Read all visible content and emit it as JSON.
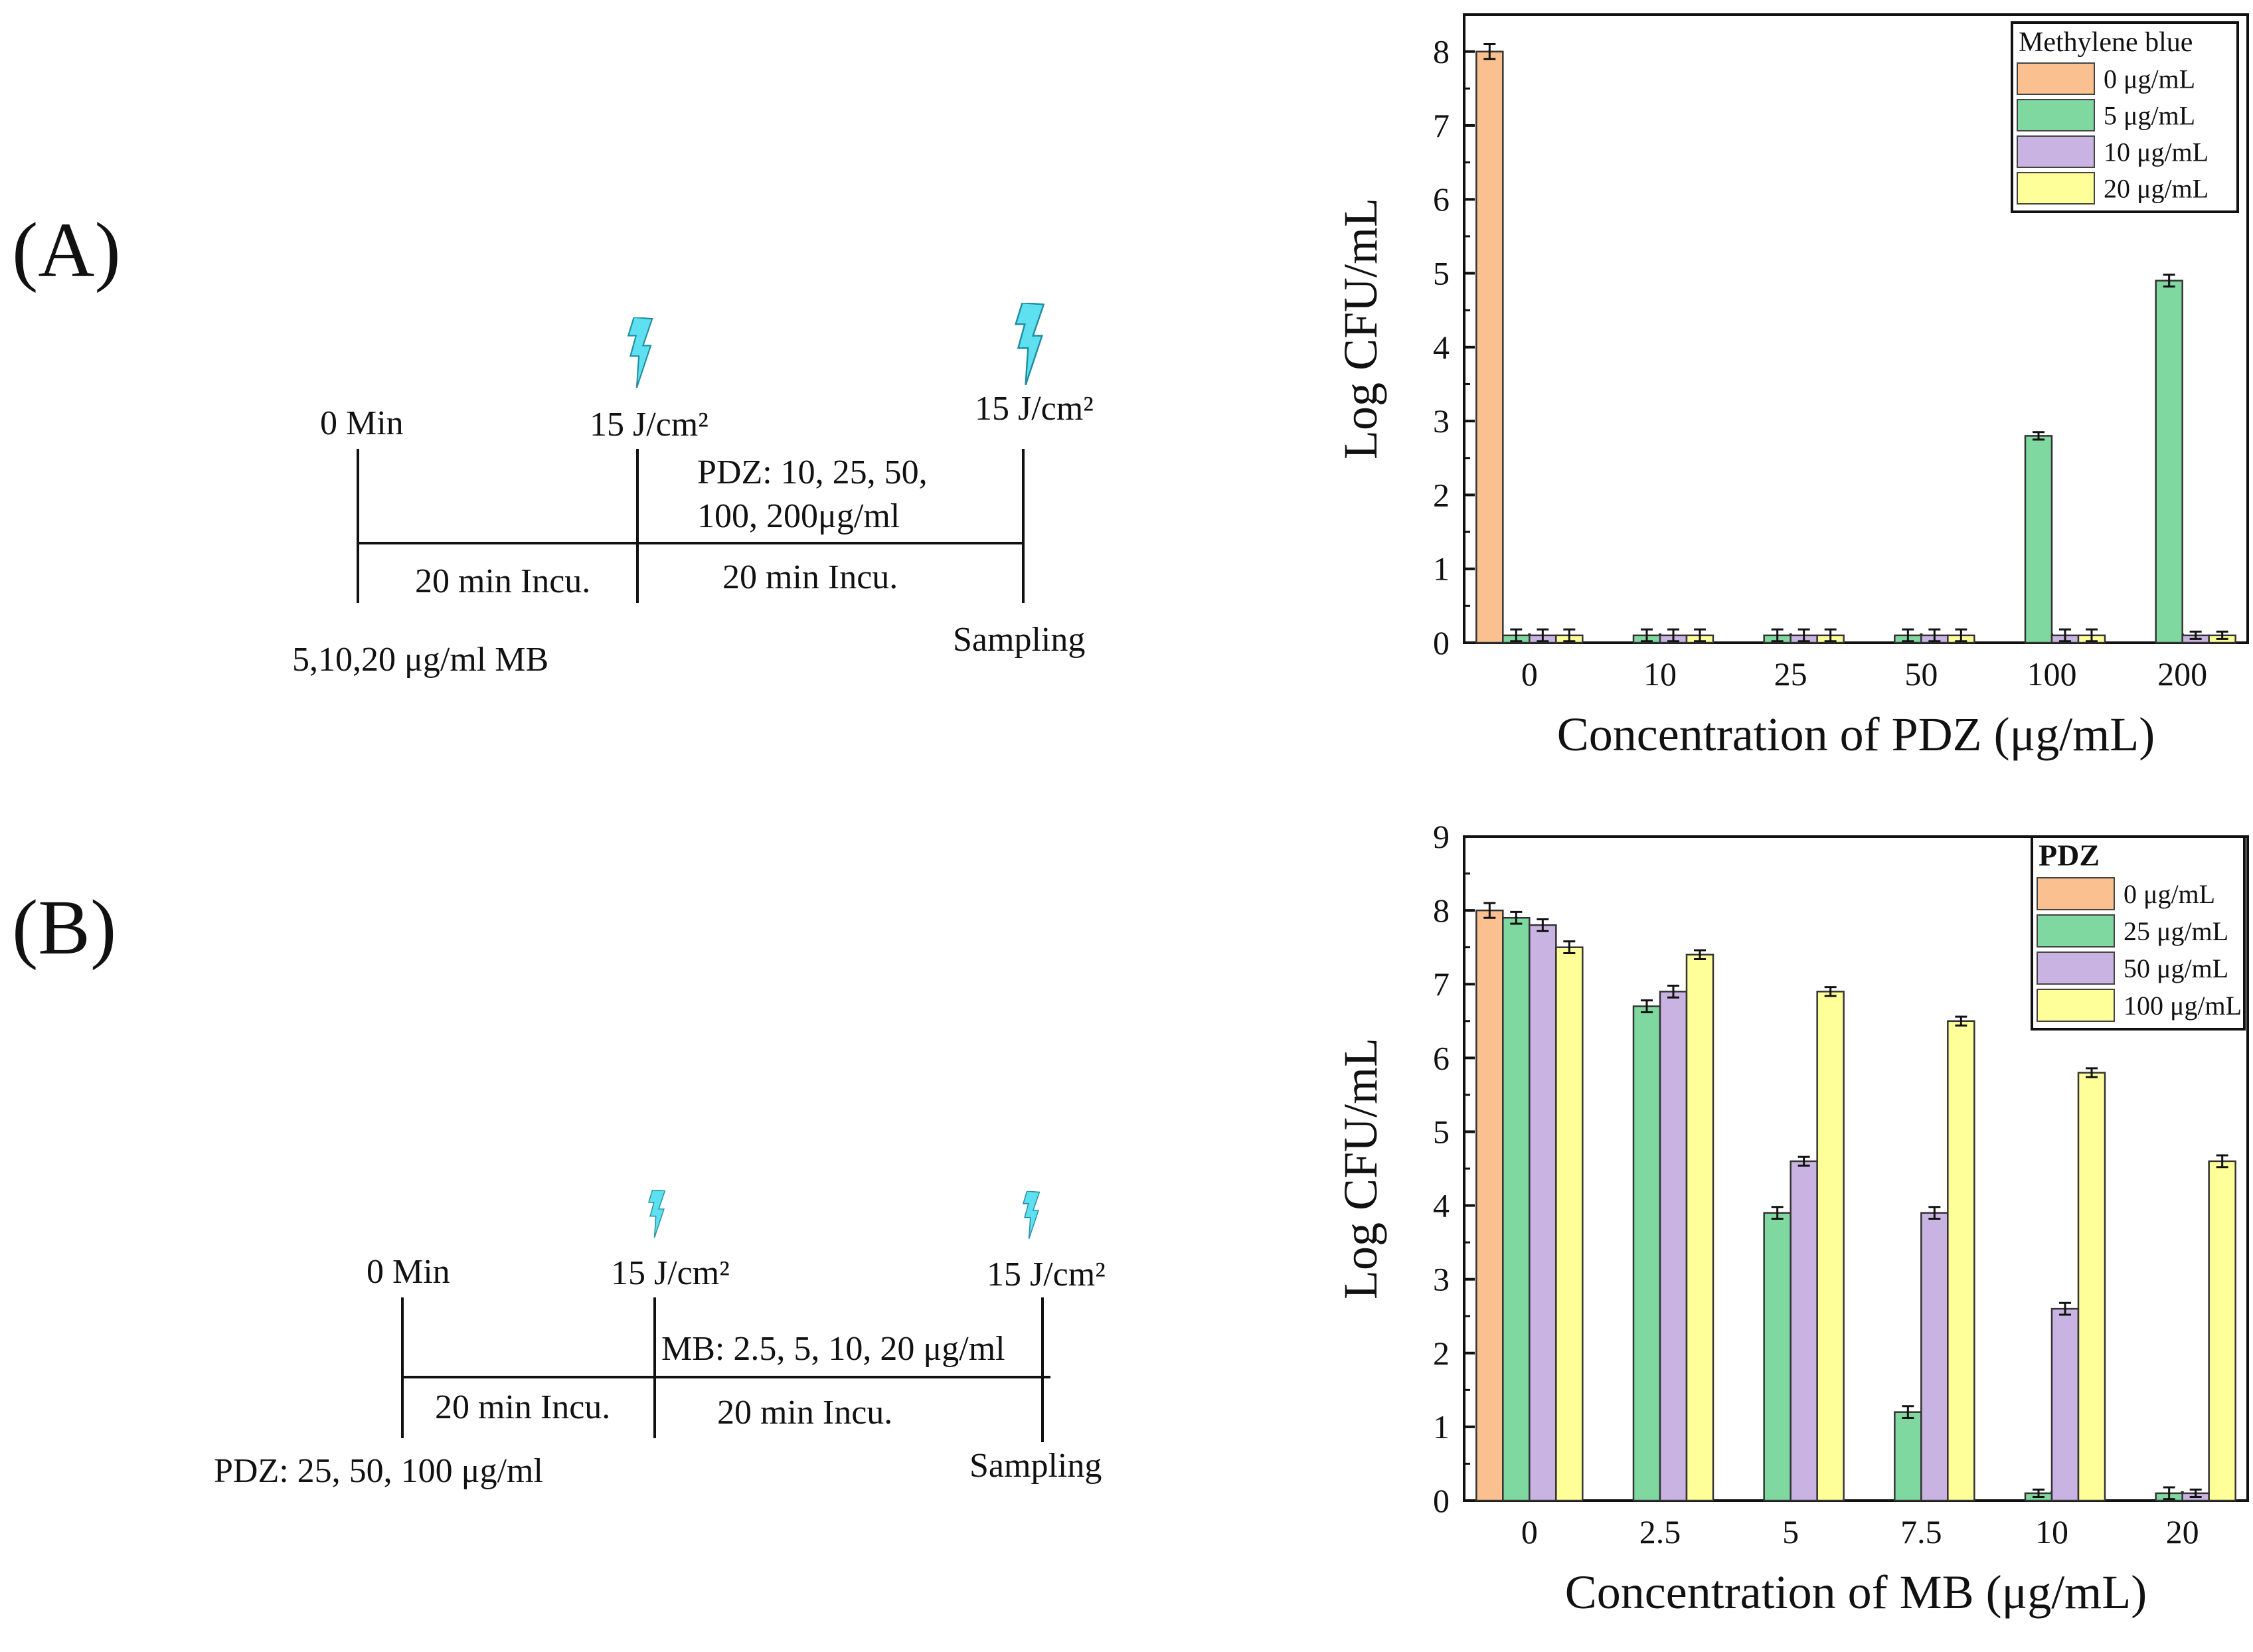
{
  "panels": {
    "a": {
      "label": "(A)",
      "timeline": {
        "start_label": "0 Min",
        "light1_label": "15 J/cm²",
        "light2_label": "15 J/cm²",
        "drug_line1": "PDZ: 10, 25, 50,",
        "drug_line2": "100, 200μg/ml",
        "incu1": "20 min Incu.",
        "incu2": "20 min Incu.",
        "pretreat": "5,10,20 μg/ml MB",
        "sampling": "Sampling"
      }
    },
    "b": {
      "label": "(B)",
      "timeline": {
        "start_label": "0 Min",
        "light1_label": "15 J/cm²",
        "light2_label": "15 J/cm²",
        "drug_line1": "MB: 2.5, 5, 10, 20 μg/ml",
        "incu1": "20 min Incu.",
        "incu2": "20 min Incu.",
        "pretreat": "PDZ: 25, 50, 100 μg/ml",
        "sampling": "Sampling"
      }
    }
  },
  "chart_data": [
    {
      "type": "bar",
      "title": "",
      "xlabel": "Concentration of PDZ (μg/mL)",
      "ylabel": "Log CFU/mL",
      "ylim": [
        0,
        8.5
      ],
      "yticks": [
        0,
        1,
        2,
        3,
        4,
        5,
        6,
        7,
        8
      ],
      "categories": [
        "0",
        "10",
        "25",
        "50",
        "100",
        "200"
      ],
      "legend_title": "Methylene blue",
      "legend_position": "top-right",
      "series": [
        {
          "name": "0 μg/mL",
          "color": "#fac090",
          "values": [
            8.0,
            null,
            null,
            null,
            null,
            null
          ],
          "errors": [
            0.1,
            null,
            null,
            null,
            null,
            null
          ]
        },
        {
          "name": "5 μg/mL",
          "color": "#7ed8a0",
          "values": [
            0.1,
            0.1,
            0.1,
            0.1,
            2.8,
            4.9
          ],
          "errors": [
            0.08,
            0.08,
            0.08,
            0.08,
            0.05,
            0.08
          ]
        },
        {
          "name": "10 μg/mL",
          "color": "#c8b3e3",
          "values": [
            0.1,
            0.1,
            0.1,
            0.1,
            0.1,
            0.1
          ],
          "errors": [
            0.08,
            0.08,
            0.08,
            0.08,
            0.08,
            0.05
          ]
        },
        {
          "name": "20 μg/mL",
          "color": "#ffff99",
          "values": [
            0.1,
            0.1,
            0.1,
            0.1,
            0.1,
            0.1
          ],
          "errors": [
            0.08,
            0.08,
            0.08,
            0.08,
            0.08,
            0.05
          ]
        }
      ]
    },
    {
      "type": "bar",
      "title": "",
      "xlabel": "Concentration of MB (μg/mL)",
      "ylabel": "Log CFU/mL",
      "ylim": [
        0,
        9
      ],
      "yticks": [
        0,
        1,
        2,
        3,
        4,
        5,
        6,
        7,
        8,
        9
      ],
      "categories": [
        "0",
        "2.5",
        "5",
        "7.5",
        "10",
        "20"
      ],
      "legend_title": "PDZ",
      "legend_position": "top-right",
      "series": [
        {
          "name": "0 μg/mL",
          "color": "#fac090",
          "values": [
            8.0,
            null,
            null,
            null,
            null,
            null
          ],
          "errors": [
            0.1,
            null,
            null,
            null,
            null,
            null
          ]
        },
        {
          "name": "25 μg/mL",
          "color": "#7ed8a0",
          "values": [
            7.9,
            6.7,
            3.9,
            1.2,
            0.1,
            0.1
          ],
          "errors": [
            0.08,
            0.08,
            0.08,
            0.08,
            0.05,
            0.08
          ]
        },
        {
          "name": "50 μg/mL",
          "color": "#c8b3e3",
          "values": [
            7.8,
            6.9,
            4.6,
            3.9,
            2.6,
            0.1
          ],
          "errors": [
            0.08,
            0.08,
            0.06,
            0.08,
            0.08,
            0.05
          ]
        },
        {
          "name": "100 μg/mL",
          "color": "#ffff99",
          "values": [
            7.5,
            7.4,
            6.9,
            6.5,
            5.8,
            4.6
          ],
          "errors": [
            0.08,
            0.06,
            0.06,
            0.06,
            0.06,
            0.08
          ]
        }
      ]
    }
  ]
}
